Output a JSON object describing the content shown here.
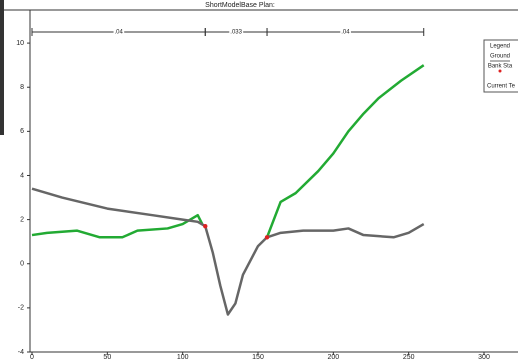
{
  "chart_data": {
    "type": "line",
    "title": "ShortModelBase    Plan:",
    "xlim": [
      0,
      300
    ],
    "xticks": [
      0,
      50,
      100,
      150,
      200,
      250,
      300
    ],
    "ylim": [
      -4,
      11.5
    ],
    "yticks": [
      -4,
      -2,
      0,
      2,
      4,
      6,
      8,
      10
    ],
    "legend_title": "Legend",
    "legend_extra": "Current Te",
    "legend_position": "right",
    "annotations": [
      {
        "text": ".04",
        "x": [
          0,
          115
        ]
      },
      {
        "text": ".033",
        "x": [
          115,
          156
        ]
      },
      {
        "text": ".04",
        "x": [
          156,
          260
        ]
      }
    ],
    "series": [
      {
        "name": "Ground",
        "color": "#666666",
        "x": [
          0,
          20,
          50,
          80,
          100,
          110,
          115,
          120,
          125,
          130,
          135,
          140,
          150,
          156,
          165,
          180,
          200,
          210,
          220,
          240,
          250,
          260
        ],
        "values": [
          3.4,
          3.0,
          2.5,
          2.2,
          2.0,
          1.9,
          1.7,
          0.5,
          -1,
          -2.3,
          -1.8,
          -0.5,
          0.8,
          1.2,
          1.4,
          1.5,
          1.5,
          1.6,
          1.3,
          1.2,
          1.4,
          1.8
        ]
      },
      {
        "name": "Current Terrain",
        "color": "#22aa33",
        "x": [
          0,
          10,
          30,
          45,
          60,
          70,
          90,
          100,
          110,
          113,
          135,
          156,
          165,
          175,
          190,
          200,
          210,
          220,
          230,
          245,
          260
        ],
        "values": [
          1.3,
          1.4,
          1.5,
          1.2,
          1.2,
          1.5,
          1.6,
          1.8,
          2.2,
          1.8,
          null,
          1.2,
          2.8,
          3.2,
          4.2,
          5.0,
          6.0,
          6.8,
          7.5,
          8.3,
          9.0
        ]
      },
      {
        "name": "Bank Sta",
        "color": "#dd2222",
        "marker": "point",
        "x": [
          115,
          156
        ],
        "values": [
          1.7,
          1.2
        ]
      }
    ]
  }
}
